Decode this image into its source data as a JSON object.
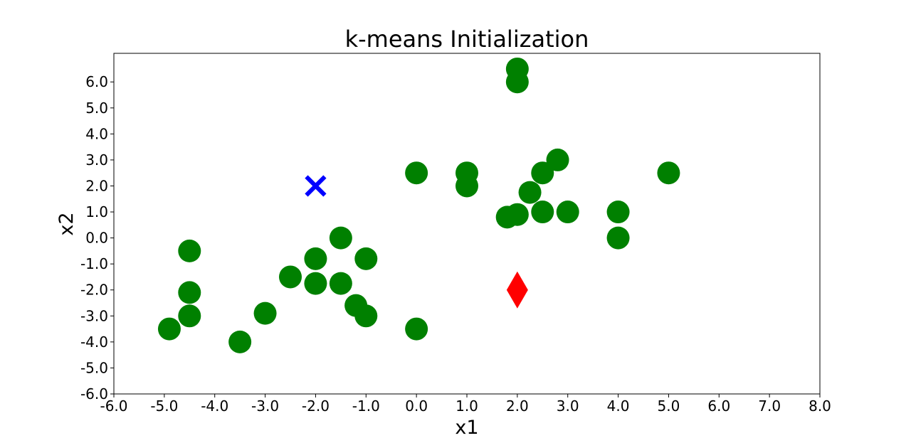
{
  "chart_data": {
    "type": "scatter",
    "title": "k-means Initialization",
    "xlabel": "x1",
    "ylabel": "x2",
    "xlim": [
      -6,
      8
    ],
    "ylim": [
      -6,
      7.1
    ],
    "xticks": [
      -6,
      -5,
      -4,
      -3,
      -2,
      -1,
      0,
      1,
      2,
      3,
      4,
      5,
      6,
      7,
      8
    ],
    "yticks": [
      -6,
      -5,
      -4,
      -3,
      -2,
      -1,
      0,
      1,
      2,
      3,
      4,
      5,
      6
    ],
    "xtick_labels": [
      "-6.0",
      "-5.0",
      "-4.0",
      "-3.0",
      "-2.0",
      "-1.0",
      "0.0",
      "1.0",
      "2.0",
      "3.0",
      "4.0",
      "5.0",
      "6.0",
      "7.0",
      "8.0"
    ],
    "ytick_labels": [
      "-6.0",
      "-5.0",
      "-4.0",
      "-3.0",
      "-2.0",
      "-1.0",
      "0.0",
      "1.0",
      "2.0",
      "3.0",
      "4.0",
      "5.0",
      "6.0"
    ],
    "grid": false,
    "legend": false,
    "series": [
      {
        "marker": "circle",
        "color": "#008000",
        "points": [
          [
            -4.9,
            -3.5
          ],
          [
            -4.5,
            -0.5
          ],
          [
            -4.5,
            -2.1
          ],
          [
            -4.5,
            -3.0
          ],
          [
            -3.5,
            -4.0
          ],
          [
            -3.0,
            -2.9
          ],
          [
            -2.5,
            -1.5
          ],
          [
            -2.0,
            -0.8
          ],
          [
            -2.0,
            -1.75
          ],
          [
            -1.5,
            0.0
          ],
          [
            -1.5,
            -1.75
          ],
          [
            -1.2,
            -2.6
          ],
          [
            -1.0,
            -0.8
          ],
          [
            -1.0,
            -3.0
          ],
          [
            0.0,
            2.5
          ],
          [
            0.0,
            -3.5
          ],
          [
            1.0,
            2.5
          ],
          [
            1.0,
            2.0
          ],
          [
            1.8,
            0.8
          ],
          [
            2.0,
            0.9
          ],
          [
            2.0,
            6.5
          ],
          [
            2.0,
            6.0
          ],
          [
            2.25,
            1.75
          ],
          [
            2.5,
            2.5
          ],
          [
            2.5,
            1.0
          ],
          [
            2.8,
            3.0
          ],
          [
            3.0,
            1.0
          ],
          [
            4.0,
            1.0
          ],
          [
            4.0,
            0.0
          ],
          [
            5.0,
            2.5
          ]
        ]
      },
      {
        "marker": "x",
        "color": "#0000ff",
        "points": [
          [
            -2.0,
            2.0
          ]
        ]
      },
      {
        "marker": "diamond",
        "color": "#ff0000",
        "points": [
          [
            2.0,
            -2.0
          ]
        ]
      }
    ]
  }
}
